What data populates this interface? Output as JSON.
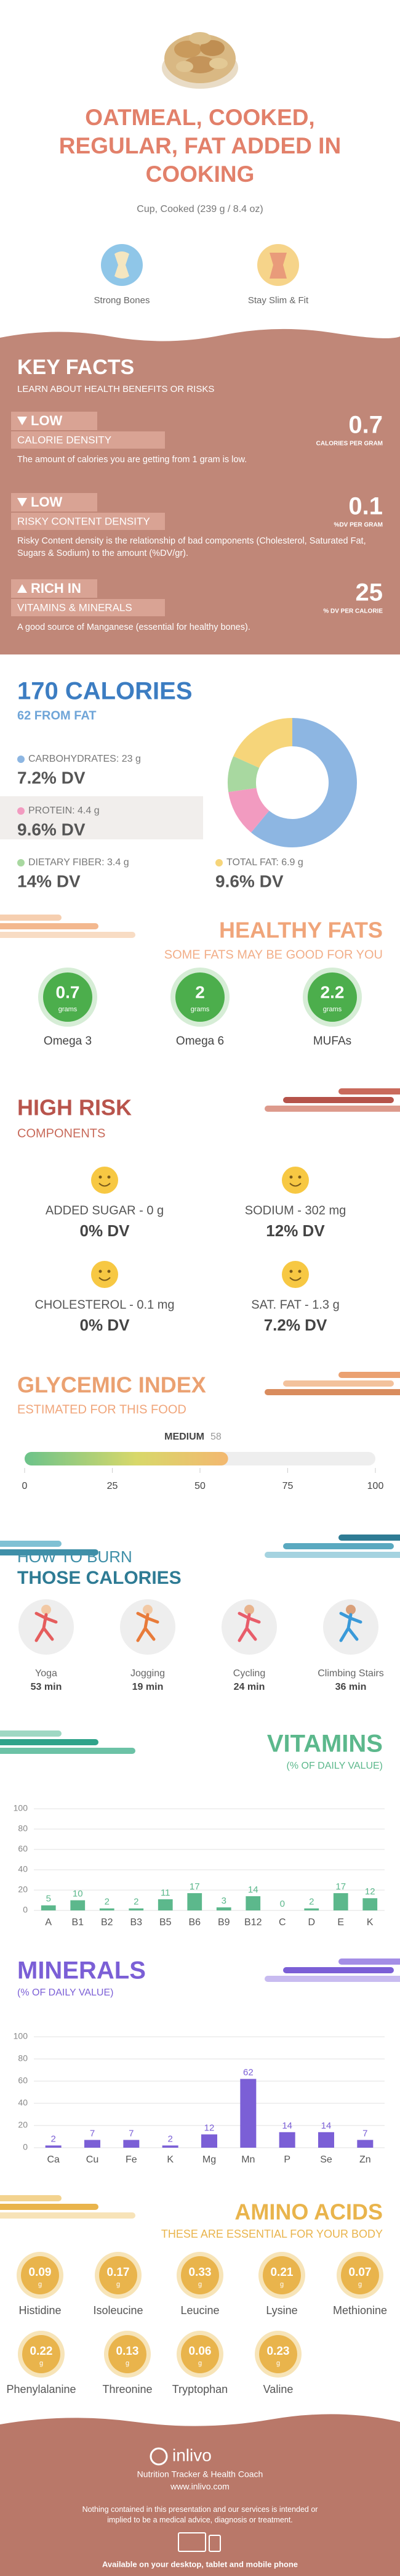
{
  "header": {
    "title": "OATMEAL, COOKED, REGULAR, FAT ADDED IN COOKING",
    "serving": "Cup, Cooked (239 g / 8.4 oz)",
    "badges": [
      "Strong Bones",
      "Stay Slim & Fit"
    ]
  },
  "key_facts": {
    "title": "KEY FACTS",
    "subtitle": "LEARN ABOUT HEALTH BENEFITS OR RISKS",
    "items": [
      {
        "level": "LOW",
        "name": "CALORIE DENSITY",
        "value": 0.7,
        "unit": "CALORIES PER GRAM",
        "description": "The amount of calories you are getting from 1 gram is low."
      },
      {
        "level": "LOW",
        "name": "RISKY CONTENT DENSITY",
        "value": 0.1,
        "unit": "%DV PER GRAM",
        "description": "Risky Content density is the relationship of bad components (Cholesterol, Saturated Fat, Sugars & Sodium) to the amount (%DV/gr)."
      },
      {
        "level": "RICH IN",
        "name": "VITAMINS & MINERALS",
        "value": 25,
        "unit": "% DV PER CALORIE",
        "description": "A good source of Manganese (essential for healthy bones)."
      }
    ]
  },
  "calories": {
    "title": "170 CALORIES",
    "from_fat": "62 FROM FAT",
    "nutrients": [
      {
        "label": "CARBOHYDRATES: 23 g",
        "grams": 23,
        "dv": "7.2% DV",
        "color": "#8db6e2"
      },
      {
        "label": "PROTEIN: 4.4 g",
        "grams": 4.4,
        "dv": "9.6% DV",
        "color": "#f29bc0"
      },
      {
        "label": "DIETARY FIBER: 3.4 g",
        "grams": 3.4,
        "dv": "14% DV",
        "color": "#a8d8a0"
      },
      {
        "label": "TOTAL FAT: 6.9 g",
        "grams": 6.9,
        "dv": "9.6% DV",
        "color": "#f6d57a"
      }
    ]
  },
  "healthy_fats": {
    "title": "HEALTHY FATS",
    "subtitle": "SOME FATS MAY BE GOOD FOR YOU",
    "color": "#4cae4c",
    "items": [
      {
        "value": 0.7,
        "unit": "grams",
        "name": "Omega 3"
      },
      {
        "value": 2,
        "unit": "grams",
        "name": "Omega 6"
      },
      {
        "value": 2.2,
        "unit": "grams",
        "name": "MUFAs"
      }
    ]
  },
  "high_risk": {
    "title": "HIGH RISK",
    "subtitle": "COMPONENTS",
    "items": [
      {
        "label": "ADDED SUGAR - 0 g",
        "dv": "0% DV"
      },
      {
        "label": "SODIUM - 302 mg",
        "dv": "12% DV"
      },
      {
        "label": "CHOLESTEROL - 0.1 mg",
        "dv": "0% DV"
      },
      {
        "label": "SAT. FAT - 1.3 g",
        "dv": "7.2% DV"
      }
    ]
  },
  "glycemic_index": {
    "title": "GLYCEMIC INDEX",
    "subtitle": "ESTIMATED FOR THIS FOOD",
    "level": "MEDIUM",
    "value": 58,
    "xlim": [
      0,
      100
    ],
    "xticks": [
      0,
      25,
      50,
      75,
      100
    ]
  },
  "burn": {
    "title": "HOW TO BURN",
    "subtitle": "THOSE CALORIES",
    "activities": [
      {
        "name": "Yoga",
        "time": "53 min"
      },
      {
        "name": "Jogging",
        "time": "19 min"
      },
      {
        "name": "Cycling",
        "time": "24 min"
      },
      {
        "name": "Climbing Stairs",
        "time": "36 min"
      }
    ]
  },
  "chart_data": [
    {
      "type": "bar",
      "title": "VITAMINS",
      "subtitle": "(% OF DAILY VALUE)",
      "categories": [
        "A",
        "B1",
        "B2",
        "B3",
        "B5",
        "B6",
        "B9",
        "B12",
        "C",
        "D",
        "E",
        "K"
      ],
      "values": [
        5,
        10,
        2,
        2,
        11,
        17,
        3,
        14,
        0,
        2,
        17,
        12
      ],
      "color": "#5cb88c",
      "ylim": [
        0,
        100
      ],
      "yticks": [
        0,
        20,
        40,
        60,
        80,
        100
      ],
      "grid": true
    },
    {
      "type": "bar",
      "title": "MINERALS",
      "subtitle": "(% OF DAILY VALUE)",
      "categories": [
        "Ca",
        "Cu",
        "Fe",
        "K",
        "Mg",
        "Mn",
        "P",
        "Se",
        "Zn"
      ],
      "values": [
        2,
        7,
        7,
        2,
        12,
        62,
        14,
        14,
        7
      ],
      "color": "#7b5fd6",
      "ylim": [
        0,
        100
      ],
      "yticks": [
        0,
        20,
        40,
        60,
        80,
        100
      ],
      "grid": true
    }
  ],
  "amino_acids": {
    "title": "AMINO ACIDS",
    "subtitle": "THESE ARE ESSENTIAL FOR YOUR BODY",
    "color": "#e9b44c",
    "items": [
      {
        "value": 0.09,
        "unit": "g",
        "name": "Histidine"
      },
      {
        "value": 0.17,
        "unit": "g",
        "name": "Isoleucine"
      },
      {
        "value": 0.33,
        "unit": "g",
        "name": "Leucine"
      },
      {
        "value": 0.21,
        "unit": "g",
        "name": "Lysine"
      },
      {
        "value": 0.07,
        "unit": "g",
        "name": "Methionine"
      },
      {
        "value": 0.22,
        "unit": "g",
        "name": "Phenylalanine"
      },
      {
        "value": 0.13,
        "unit": "g",
        "name": "Threonine"
      },
      {
        "value": 0.06,
        "unit": "g",
        "name": "Tryptophan"
      },
      {
        "value": 0.23,
        "unit": "g",
        "name": "Valine"
      }
    ]
  },
  "footer": {
    "brand": "inlivo",
    "tagline": "Nutrition Tracker & Health Coach",
    "url": "www.inlivo.com",
    "disclaimer": "Nothing contained in this presentation and our services is intended or implied to be a medical advice, diagnosis or treatment.",
    "availability": "Available on your desktop, tablet and mobile phone"
  }
}
